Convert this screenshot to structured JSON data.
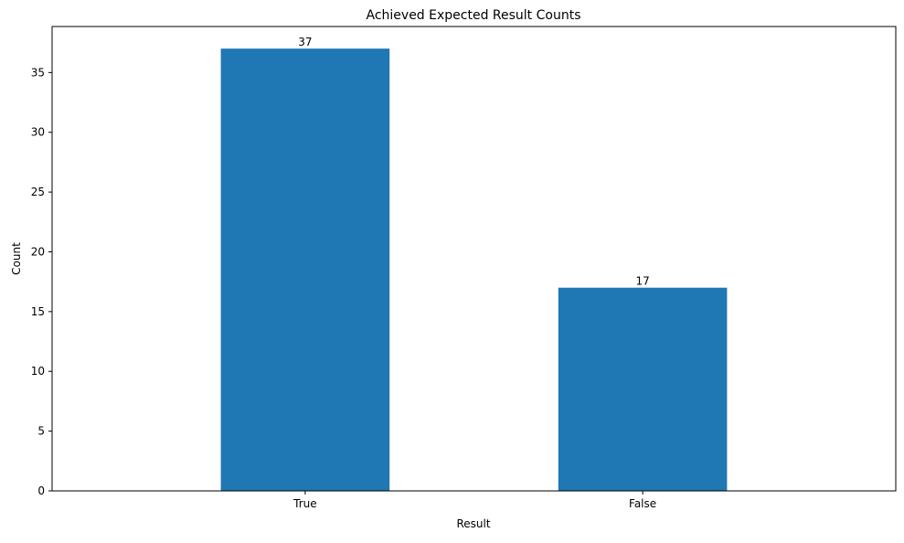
{
  "chart_data": {
    "type": "bar",
    "title": "Achieved Expected Result Counts",
    "xlabel": "Result",
    "ylabel": "Count",
    "categories": [
      "True",
      "False"
    ],
    "values": [
      37,
      17
    ],
    "data_labels": [
      "37",
      "17"
    ],
    "yticks": [
      0,
      5,
      10,
      15,
      20,
      25,
      30,
      35
    ],
    "ylim": [
      0,
      38.85
    ],
    "grid": false,
    "legend": "none",
    "bar_color": "#1f77b4"
  }
}
